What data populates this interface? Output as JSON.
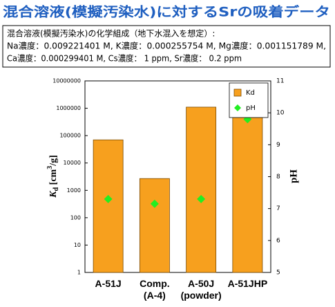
{
  "header": {
    "title": "混合溶液(模擬汚染水)に対するSrの吸着データ",
    "lines": [
      "混合溶液(模擬汚染水)の化学組成（地下水混入を想定）:",
      "Na濃度：0.009221401 M, K濃度：0.000255754 M, Mg濃度：0.001151789 M,",
      "Ca濃度：0.000299401 M, Cs濃度： 1 ppm, Sr濃度： 0.2 ppm"
    ]
  },
  "chart_data": {
    "type": "bar",
    "categories": [
      "A-51J",
      "Comp.\n(A-4)",
      "A-50J\n(powder)",
      "A-51JHP"
    ],
    "series": [
      {
        "name": "Kd",
        "color": "#f7a01e",
        "values": [
          70000,
          2700,
          1100000,
          1100000
        ]
      },
      {
        "name": "pH",
        "color": "#22ee22",
        "axis": "y2",
        "marker": "diamond",
        "values": [
          7.3,
          7.15,
          7.3,
          9.8
        ]
      }
    ],
    "y_label": [
      "K",
      "d",
      " [cm",
      "3",
      "/g]"
    ],
    "y2_label": "pH",
    "ylim": [
      1,
      10000000
    ],
    "yticks": [
      1,
      10,
      100,
      1000,
      10000,
      100000,
      1000000,
      10000000
    ],
    "log_y": true,
    "y2lim": [
      5,
      11
    ],
    "y2ticks": [
      5,
      6,
      7,
      8,
      9,
      10,
      11
    ],
    "grid": false,
    "legend": "upper right"
  }
}
